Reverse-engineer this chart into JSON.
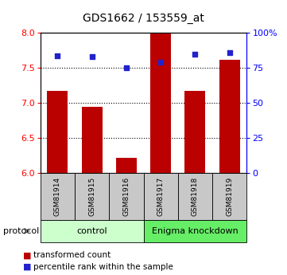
{
  "title": "GDS1662 / 153559_at",
  "samples": [
    "GSM81914",
    "GSM81915",
    "GSM81916",
    "GSM81917",
    "GSM81918",
    "GSM81919"
  ],
  "bar_values": [
    7.18,
    6.95,
    6.22,
    8.0,
    7.18,
    7.62
  ],
  "dot_values": [
    84,
    83,
    75,
    79,
    85,
    86
  ],
  "ylim_left": [
    6,
    8
  ],
  "ylim_right": [
    0,
    100
  ],
  "left_ticks": [
    6,
    6.5,
    7,
    7.5,
    8
  ],
  "right_ticks": [
    0,
    25,
    50,
    75,
    100
  ],
  "right_tick_labels": [
    "0",
    "25",
    "50",
    "75",
    "100%"
  ],
  "bar_color": "#bb0000",
  "dot_color": "#2222cc",
  "protocol_labels": [
    "control",
    "Enigma knockdown"
  ],
  "protocol_colors": [
    "#ccffcc",
    "#66ee66"
  ],
  "sample_bg_color": "#c8c8c8",
  "legend_items": [
    "transformed count",
    "percentile rank within the sample"
  ],
  "protocol_text": "protocol"
}
